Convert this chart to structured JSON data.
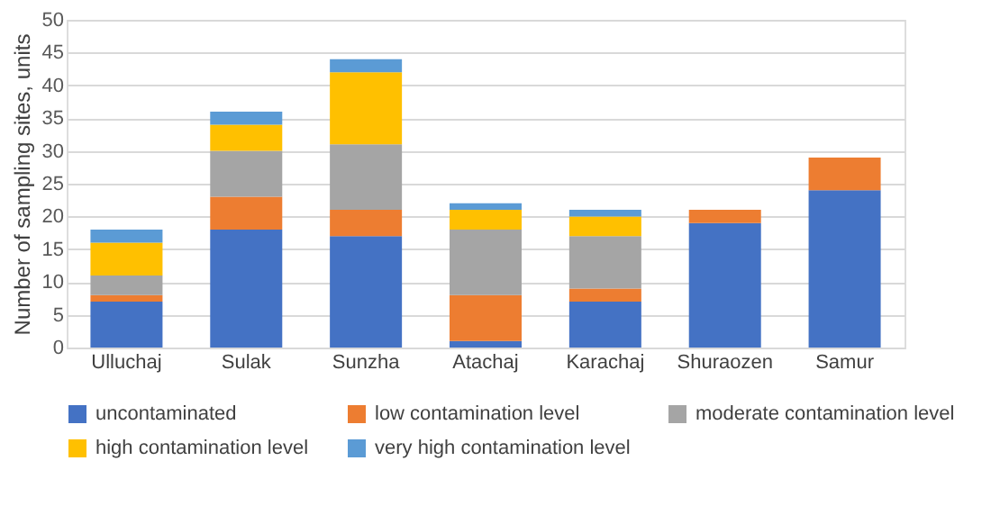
{
  "chart_data": {
    "type": "bar",
    "stacked": true,
    "ylabel": "Number of sampling sites, units",
    "categories": [
      "Ulluchaj",
      "Sulak",
      "Sunzha",
      "Atachaj",
      "Karachaj",
      "Shuraozen",
      "Samur"
    ],
    "series": [
      {
        "name": "uncontaminated",
        "color": "#4472c4",
        "values": [
          7,
          18,
          17,
          1,
          7,
          19,
          24
        ]
      },
      {
        "name": "low contamination level",
        "color": "#ed7d31",
        "values": [
          1,
          5,
          4,
          7,
          2,
          2,
          5
        ]
      },
      {
        "name": "moderate contamination level",
        "color": "#a5a5a5",
        "values": [
          3,
          7,
          10,
          10,
          8,
          0,
          0
        ]
      },
      {
        "name": "high contamination level",
        "color": "#ffc000",
        "values": [
          5,
          4,
          11,
          3,
          3,
          0,
          0
        ]
      },
      {
        "name": "very high contamination level",
        "color": "#5b9bd5",
        "values": [
          2,
          2,
          2,
          1,
          1,
          0,
          0
        ]
      }
    ],
    "ylim": [
      0,
      50
    ],
    "yticks": [
      0,
      5,
      10,
      15,
      20,
      25,
      30,
      35,
      40,
      45,
      50
    ],
    "grid": "y",
    "legend": "bottom"
  }
}
